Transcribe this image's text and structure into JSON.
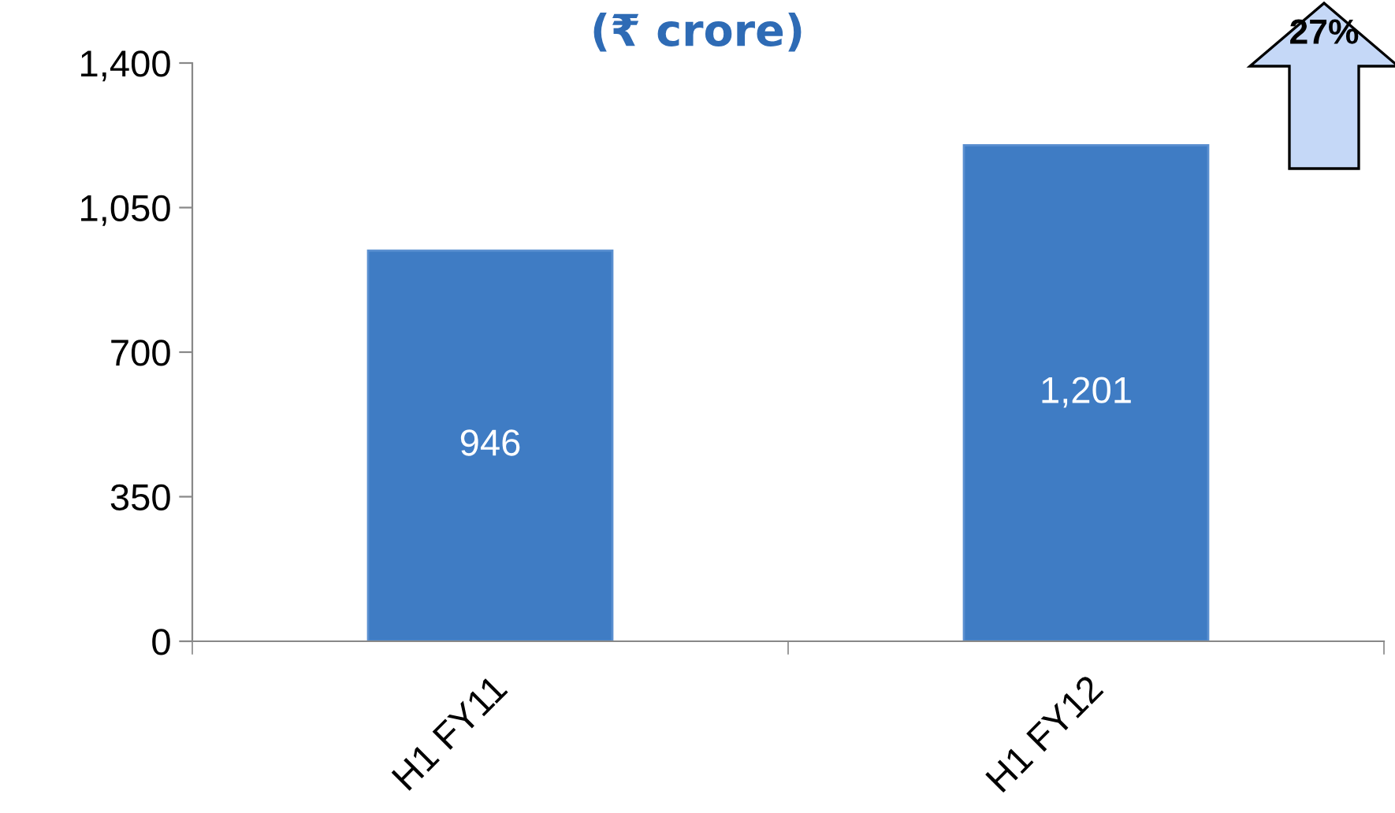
{
  "chart_data": {
    "type": "bar",
    "title": "(₹ crore)",
    "categories": [
      "H1 FY11",
      "H1 FY12"
    ],
    "values": [
      946,
      1201
    ],
    "value_labels": [
      "946",
      "1,201"
    ],
    "color": "#3f7cc4",
    "ylim": [
      0,
      1400
    ],
    "yticks": [
      0,
      {
        "value": 350,
        "label": "350"
      },
      {
        "value": 700,
        "label": "700"
      },
      {
        "value": 1050,
        "label": "1,050"
      },
      {
        "value": 1400,
        "label": "1,400"
      }
    ],
    "grid": false,
    "legend": false,
    "annotations": [
      "27%"
    ]
  }
}
